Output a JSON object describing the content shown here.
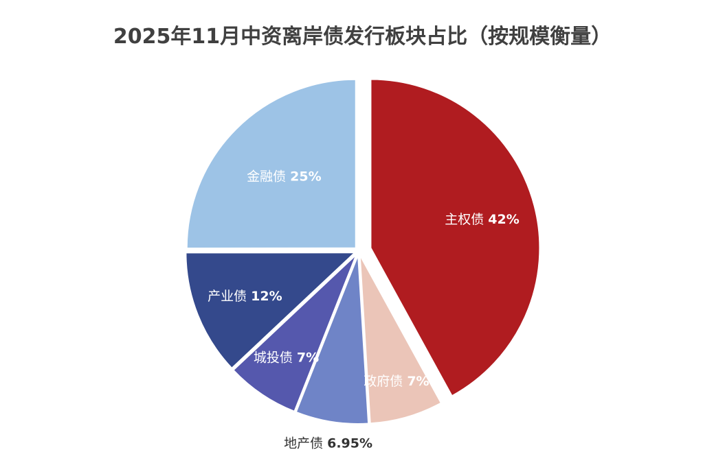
{
  "chart_data": {
    "type": "pie",
    "title": "2025年11月中资离岸债发行板块占比（按规模衡量）",
    "categories": [
      "主权债",
      "政府债",
      "地产债",
      "城投债",
      "产业债",
      "金融债"
    ],
    "label_names": [
      "主权债",
      "政府债",
      "地产债",
      "城投债",
      "产业债",
      "金融债"
    ],
    "label_values": [
      "42%",
      "7%",
      "6.95%",
      "7%",
      "12%",
      "25%"
    ],
    "values": [
      42,
      7,
      6.95,
      7,
      12,
      25
    ],
    "colors": [
      "#b01c20",
      "#ebc5b8",
      "#6f84c7",
      "#5558ad",
      "#34498c",
      "#9dc3e6"
    ],
    "label_colors": [
      "#ffffff",
      "#ffffff",
      "#333333",
      "#ffffff",
      "#ffffff",
      "#ffffff"
    ],
    "legend": "none"
  }
}
